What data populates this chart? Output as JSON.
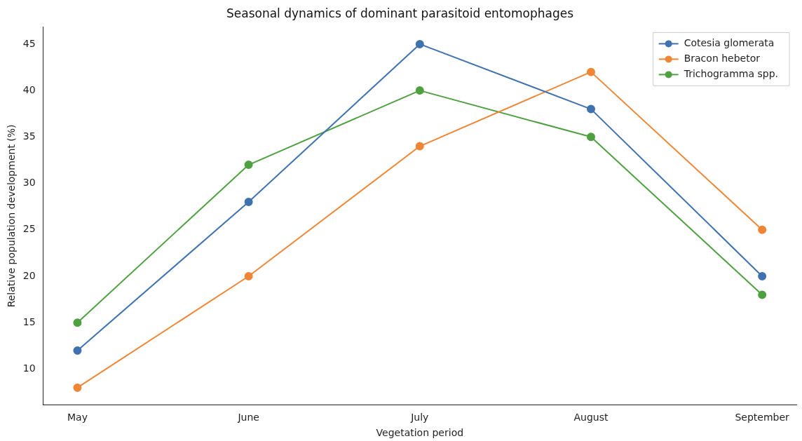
{
  "chart_data": {
    "type": "line",
    "title": "Seasonal dynamics of dominant parasitoid entomophages",
    "xlabel": "Vegetation period",
    "ylabel": "Relative population development (%)",
    "categories": [
      "May",
      "June",
      "July",
      "August",
      "September"
    ],
    "series": [
      {
        "name": "Cotesia glomerata",
        "color": "#3f72af",
        "values": [
          12,
          28,
          45,
          38,
          20
        ]
      },
      {
        "name": "Bracon hebetor",
        "color": "#ef8636",
        "values": [
          8,
          20,
          34,
          42,
          25
        ]
      },
      {
        "name": "Trichogramma spp.",
        "color": "#4fa040",
        "values": [
          15,
          32,
          40,
          35,
          18
        ]
      }
    ],
    "ylim": [
      6.15,
      46.85
    ],
    "yticks": [
      10,
      15,
      20,
      25,
      30,
      35,
      40,
      45
    ],
    "grid": false,
    "legend": "top right",
    "marker": "circle",
    "line_style": "solid"
  }
}
